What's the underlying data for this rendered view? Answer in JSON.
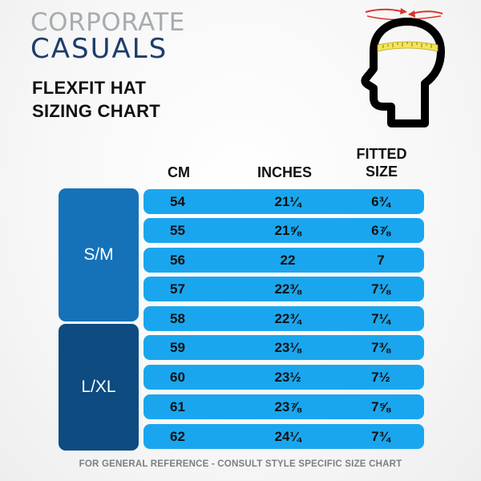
{
  "brand": {
    "line1": "CORPORATE",
    "line2": "CASUALS"
  },
  "title": {
    "line1": "FLEXFIT HAT",
    "line2": "SIZING CHART"
  },
  "columns": {
    "cm": "CM",
    "inches": "INCHES",
    "fitted_line1": "FITTED",
    "fitted_line2": "SIZE"
  },
  "groups": {
    "sm": "S/M",
    "lxl": "L/XL"
  },
  "rows": [
    {
      "cm": "54",
      "inches": "21¼",
      "fitted": "6¾"
    },
    {
      "cm": "55",
      "inches": "21⅝",
      "fitted": "6⅞"
    },
    {
      "cm": "56",
      "inches": "22",
      "fitted": "7"
    },
    {
      "cm": "57",
      "inches": "22⅜",
      "fitted": "7⅛"
    },
    {
      "cm": "58",
      "inches": "22¾",
      "fitted": "7¼"
    },
    {
      "cm": "59",
      "inches": "23⅛",
      "fitted": "7⅜"
    },
    {
      "cm": "60",
      "inches": "23½",
      "fitted": "7½"
    },
    {
      "cm": "61",
      "inches": "23⅞",
      "fitted": "7⅝"
    },
    {
      "cm": "62",
      "inches": "24¼",
      "fitted": "7¾"
    }
  ],
  "footer": "FOR GENERAL REFERENCE - CONSULT STYLE SPECIFIC SIZE CHART",
  "icons": {
    "head": "head-measuring-icon"
  },
  "colors": {
    "row_bg": "#1aa6ee",
    "group_sm": "#1572b8",
    "group_lxl": "#0d4b80",
    "brand_navy": "#1e3c6b",
    "brand_gray": "#a7acb0",
    "tape_yellow": "#f3e45a",
    "arrow_red": "#d9352b"
  }
}
